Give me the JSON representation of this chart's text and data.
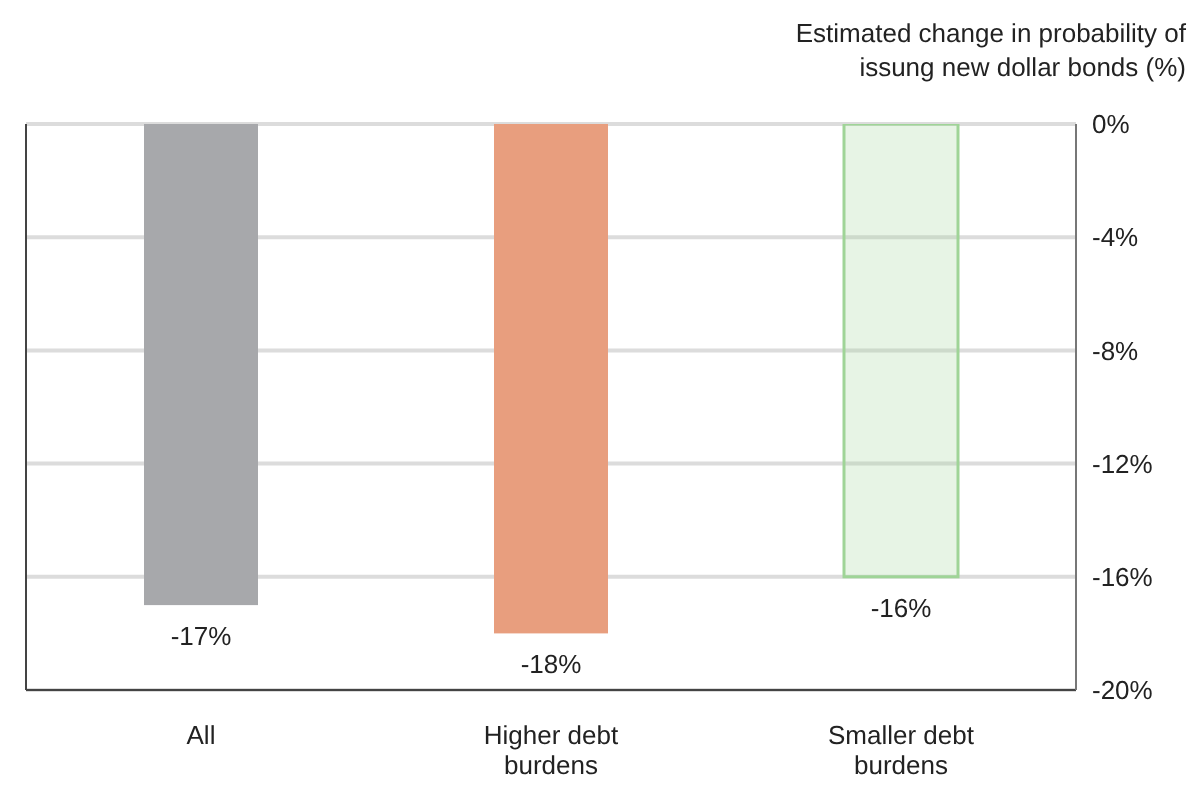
{
  "chart_data": {
    "type": "bar",
    "ylabel": "Estimated change in probability of issung new dollar bonds (%)",
    "categories": [
      "All",
      "Higher debt burdens",
      "Smaller debt burdens"
    ],
    "values": [
      -17,
      -18,
      -16
    ],
    "colors": [
      "#a7a8ab",
      "#e89e7e",
      "#9fd497"
    ],
    "value_labels": [
      "-17%",
      "-18%",
      "-16%"
    ],
    "ylim": [
      -20,
      0
    ],
    "yticks": [
      {
        "value": 0,
        "label": "0%"
      },
      {
        "value": -4,
        "label": "-4%"
      },
      {
        "value": -8,
        "label": "-8%"
      },
      {
        "value": -12,
        "label": "-12%"
      },
      {
        "value": -16,
        "label": "-16%"
      },
      {
        "value": -20,
        "label": "-20%"
      }
    ],
    "grid": "y"
  }
}
